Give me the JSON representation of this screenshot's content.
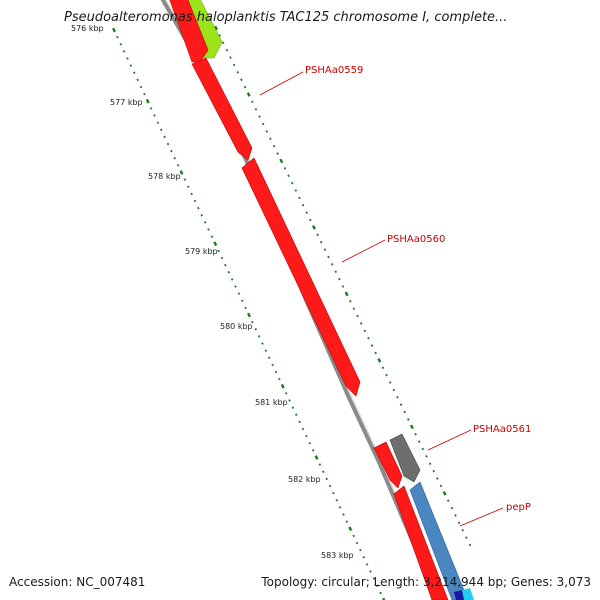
{
  "title": "Pseudoalteromonas haloplanktis TAC125 chromosome I, complete...",
  "footer": {
    "accession": "Accession: NC_007481",
    "topology": "Topology: circular; Length: 3,214,944 bp; Genes: 3,073"
  },
  "colors": {
    "backbone": "#8a8a8a",
    "gene_red": "#ff1a1a",
    "gene_green": "#9be31a",
    "gene_gray": "#6e6e6e",
    "gene_blue": "#4a86c0",
    "gene_cyan": "#22ccee",
    "gene_navy": "#1a1aa0",
    "tick": "#1e7a1e",
    "label": "#cc0000"
  },
  "ticks": [
    "576 kbp",
    "577 kbp",
    "578 kbp",
    "579 kbp",
    "580 kbp",
    "581 kbp",
    "582 kbp",
    "583 kbp"
  ],
  "genes": [
    {
      "label": "PSHAa0559"
    },
    {
      "label": "PSHAa0560"
    },
    {
      "label": "PSHAa0561"
    },
    {
      "label": "pepP"
    }
  ]
}
